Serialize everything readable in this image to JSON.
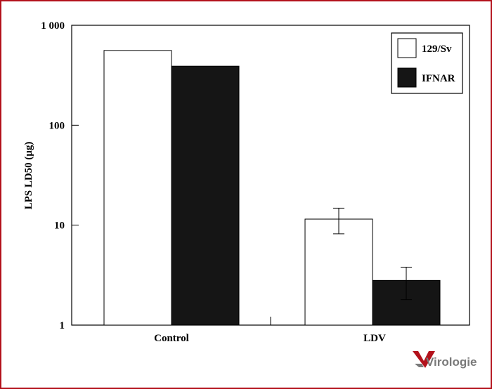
{
  "chart_data": {
    "type": "bar",
    "categories": [
      "Control",
      "LDV"
    ],
    "series": [
      {
        "name": "129/Sv",
        "values": [
          560,
          11.5
        ],
        "error": [
          null,
          3.3
        ],
        "color": "#ffffff"
      },
      {
        "name": "IFNAR",
        "values": [
          390,
          2.8
        ],
        "error": [
          null,
          1.0
        ],
        "color": "#151515"
      }
    ],
    "ylabel": "LPS LD50 (μg)",
    "xlabel": "",
    "yscale": "log",
    "ylim": [
      1,
      1000
    ],
    "yticks": [
      {
        "value": 1,
        "label": "1"
      },
      {
        "value": 10,
        "label": "10"
      },
      {
        "value": 100,
        "label": "100"
      },
      {
        "value": 1000,
        "label": "1 000"
      }
    ],
    "legend_position": "top-right",
    "grid": false
  },
  "logo": {
    "text": "Virologie"
  },
  "colors": {
    "frame": "#b3121c",
    "logo_mark": "#b3121c"
  }
}
